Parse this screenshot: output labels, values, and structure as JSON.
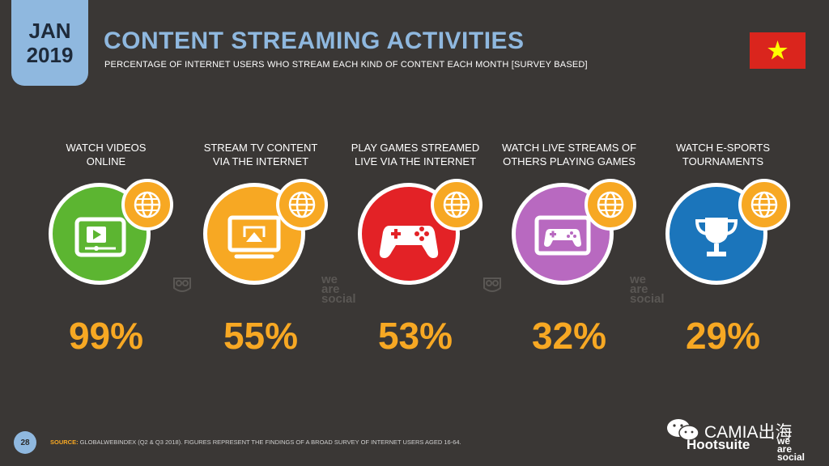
{
  "header": {
    "month": "JAN",
    "year": "2019",
    "title": "CONTENT STREAMING ACTIVITIES",
    "subtitle": "PERCENTAGE OF INTERNET USERS WHO STREAM EACH KIND OF CONTENT EACH MONTH [SURVEY BASED]"
  },
  "items": [
    {
      "label_line1": "WATCH VIDEOS",
      "label_line2": "ONLINE",
      "value": "99%",
      "color": "#5cb531",
      "icon": "video-player-icon"
    },
    {
      "label_line1": "STREAM TV CONTENT",
      "label_line2": "VIA THE INTERNET",
      "value": "55%",
      "color": "#f7a823",
      "icon": "tv-cast-icon"
    },
    {
      "label_line1": "PLAY GAMES STREAMED",
      "label_line2": "LIVE VIA THE INTERNET",
      "value": "53%",
      "color": "#e32226",
      "icon": "gamepad-icon"
    },
    {
      "label_line1": "WATCH LIVE STREAMS OF",
      "label_line2": "OTHERS PLAYING GAMES",
      "value": "32%",
      "color": "#b869c0",
      "icon": "gamepad-screen-icon"
    },
    {
      "label_line1": "WATCH E-SPORTS",
      "label_line2": "TOURNAMENTS",
      "value": "29%",
      "color": "#1b75bb",
      "icon": "trophy-icon"
    }
  ],
  "watermark": {
    "line1": "we",
    "line2": "are",
    "line3": "social"
  },
  "footer": {
    "page": "28",
    "source_label": "SOURCE:",
    "source_text": " GLOBALWEBINDEX (Q2 & Q3 2018). FIGURES REPRESENT THE FINDINGS OF A BROAD SURVEY OF INTERNET USERS AGED 16-64."
  },
  "branding": {
    "camia": "CAMIA出海",
    "hootsuite": "Hootsuite",
    "was_line1": "we",
    "was_line2": "are",
    "was_line3": "social"
  },
  "colors": {
    "accent_blue": "#8fb8df",
    "accent_orange": "#f7a823",
    "flag_red": "#da251d",
    "flag_star": "#ffff00"
  }
}
